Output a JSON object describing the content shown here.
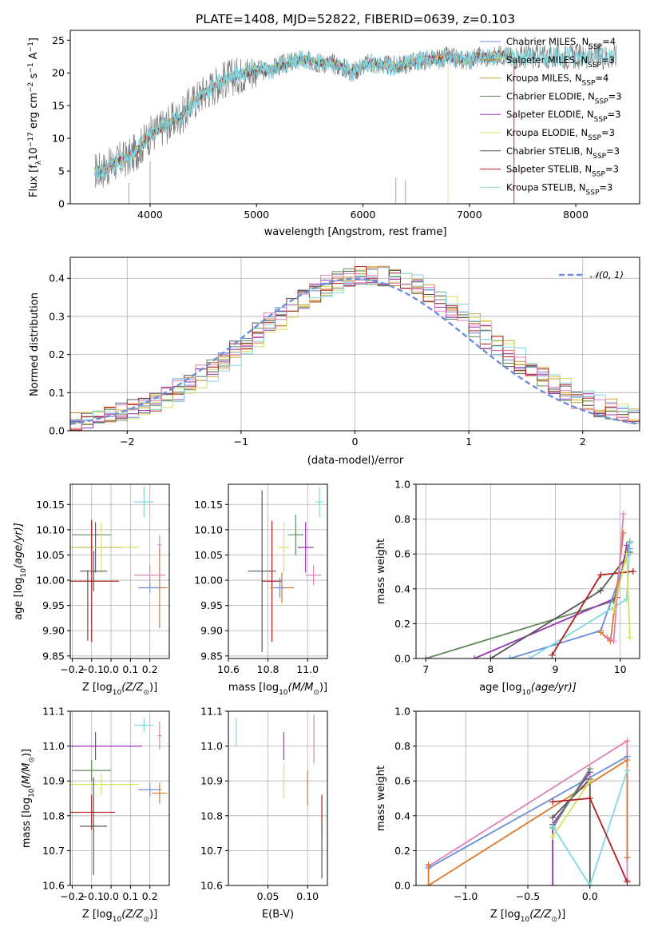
{
  "colors": {
    "c1": "#6a8fd8",
    "c2": "#dd7a2a",
    "c3": "#c9a23a",
    "c4": "#5e8a5e",
    "c5": "#9a33b8",
    "c6": "#d8e060",
    "c7": "#555555",
    "c8": "#b02020",
    "c9": "#80d8e0",
    "pink": "#e080b8",
    "grid": "#b0b0b0",
    "gray": "#7a7a7a"
  },
  "chart_data": [
    {
      "id": "spectrum",
      "type": "line",
      "title": "PLATE=1408, MJD=52822, FIBERID=0639, z=0.103",
      "xlabel": "wavelength [Angstrom, rest frame]",
      "ylabel": "Flux [f",
      "ylabel_sub": "λ",
      "ylabel_rest": "10",
      "ylabel_sup": "−17",
      "ylabel_units": " erg cm",
      "ylabel_sup2": "−2",
      "ylabel_s": " s",
      "ylabel_sup3": "−1",
      "ylabel_a": " A",
      "ylabel_sup4": "−1",
      "ylabel_end": "]",
      "xlim": [
        3250,
        8600
      ],
      "ylim": [
        0,
        26.5
      ],
      "xticks": [
        4000,
        5000,
        6000,
        7000,
        8000
      ],
      "yticks": [
        0,
        5,
        10,
        15,
        20,
        25
      ],
      "x": [
        3480,
        3600,
        3700,
        3800,
        3900,
        4000,
        4100,
        4200,
        4300,
        4400,
        4500,
        4600,
        4700,
        4800,
        4900,
        5000,
        5100,
        5200,
        5300,
        5400,
        5500,
        5600,
        5700,
        5800,
        5900,
        6000,
        6100,
        6200,
        6300,
        6400,
        6500,
        6600,
        6700,
        6800,
        6900,
        7000,
        7100,
        7200,
        7300,
        7400
      ],
      "model": [
        5.0,
        5.5,
        6.5,
        7.0,
        8.5,
        10.5,
        11.5,
        12.5,
        13.5,
        15.5,
        17.0,
        18.0,
        19.0,
        19.5,
        20.0,
        20.5,
        20.3,
        21.0,
        21.5,
        22.0,
        21.8,
        21.5,
        21.5,
        21.0,
        20.0,
        21.2,
        21.5,
        21.2,
        21.0,
        21.3,
        21.8,
        22.0,
        22.0,
        22.5,
        22.0,
        22.0,
        22.5,
        22.3,
        22.8,
        22.5
      ],
      "series_legend": [
        {
          "label": "Chabrier MILES, N",
          "sub": "SSP",
          "end": "=4",
          "color": "#6a8fd8"
        },
        {
          "label": "Salpeter MILES, N",
          "sub": "SSP",
          "end": "=3",
          "color": "#dd7a2a"
        },
        {
          "label": "Kroupa MILES, N",
          "sub": "SSP",
          "end": "=4",
          "color": "#c9a23a"
        },
        {
          "label": "Chabrier ELODIE, N",
          "sub": "SSP",
          "end": "=3",
          "color": "#5e8a5e"
        },
        {
          "label": "Salpeter ELODIE, N",
          "sub": "SSP",
          "end": "=3",
          "color": "#9a33b8"
        },
        {
          "label": "Kroupa ELODIE, N",
          "sub": "SSP",
          "end": "=3",
          "color": "#d8e060"
        },
        {
          "label": "Chabrier STELIB, N",
          "sub": "SSP",
          "end": "=3",
          "color": "#555555"
        },
        {
          "label": "Salpeter STELIB, N",
          "sub": "SSP",
          "end": "=3",
          "color": "#b02020"
        },
        {
          "label": "Kroupa STELIB, N",
          "sub": "SSP",
          "end": "=3",
          "color": "#80d8e0"
        }
      ]
    },
    {
      "id": "residuals",
      "type": "line",
      "xlabel": "(data-model)/error",
      "ylabel": "Normed distribution",
      "xlim": [
        -2.5,
        2.5
      ],
      "ylim": [
        0,
        0.455
      ],
      "xticks": [
        -2,
        -1,
        0,
        1,
        2
      ],
      "yticks": [
        0.0,
        0.1,
        0.2,
        0.3,
        0.4
      ],
      "legend": "𝒩(0, 1)",
      "gaussian_sigma": 1
    },
    {
      "id": "age-vs-Z",
      "type": "scatter",
      "xlabel": "Z [log",
      "xlabel_sub": "10",
      "xlabel_mid": "(Z/Z",
      "xlabel_sub2": "⊙",
      "xlabel_end": ")]",
      "ylabel": "age  [log",
      "ylabel_sub": "10",
      "ylabel_end": "(age/yr)]",
      "xlim": [
        -0.21,
        0.3
      ],
      "ylim": [
        9.845,
        10.19
      ],
      "xticks": [
        -0.2,
        -0.1,
        0.0,
        0.1,
        0.2
      ],
      "yticks": [
        9.85,
        9.9,
        9.95,
        10.0,
        10.05,
        10.1,
        10.15
      ],
      "points": [
        {
          "x": 0.17,
          "y": 10.155,
          "xerr": 0.05,
          "yerr": 0.03,
          "c": "#80d8e0"
        },
        {
          "x": -0.1,
          "y": 10.09,
          "xerr": 0.1,
          "yerr": 0.03,
          "c": "#5e8a5e"
        },
        {
          "x": -0.08,
          "y": 10.065,
          "xerr": 0.13,
          "yerr": 0.05,
          "c": "#9a33b8"
        },
        {
          "x": -0.05,
          "y": 10.065,
          "xerr": 0.19,
          "yerr": 0.05,
          "c": "#d8e060"
        },
        {
          "x": 0.25,
          "y": 10.07,
          "xerr": 0.01,
          "yerr": 0.02,
          "c": "#e080b8"
        },
        {
          "x": -0.09,
          "y": 10.018,
          "xerr": 0.07,
          "yerr": 0.04,
          "c": "#555555"
        },
        {
          "x": 0.2,
          "y": 10.01,
          "xerr": 0.08,
          "yerr": 0.02,
          "c": "#e080b8"
        },
        {
          "x": -0.1,
          "y": 9.998,
          "xerr": 0.14,
          "yerr": 0.12,
          "c": "#b02020"
        },
        {
          "x": 0.25,
          "y": 9.985,
          "xerr": 0.04,
          "yerr": 0.08,
          "c": "#dd7a2a"
        },
        {
          "x": 0.2,
          "y": 9.985,
          "xerr": 0.06,
          "yerr": 0.01,
          "c": "#6a8fd8"
        },
        {
          "x": -0.12,
          "y": 9.95,
          "xerr": 0.0,
          "yerr": 0.07,
          "c": "#555555"
        }
      ]
    },
    {
      "id": "age-vs-mass",
      "type": "scatter",
      "xlabel": "mass [log",
      "xlabel_sub": "10",
      "xlabel_mid": "(M/M",
      "xlabel_sub2": "⊙",
      "xlabel_end": ")]",
      "xlim": [
        10.6,
        11.1
      ],
      "ylim": [
        9.845,
        10.19
      ],
      "xticks": [
        10.6,
        10.8,
        11.0
      ],
      "yticks": [
        9.85,
        9.9,
        9.95,
        10.0,
        10.05,
        10.1,
        10.15
      ],
      "points": [
        {
          "x": 11.06,
          "y": 10.155,
          "xerr": 0.02,
          "yerr": 0.03,
          "c": "#80d8e0"
        },
        {
          "x": 10.94,
          "y": 10.09,
          "xerr": 0.04,
          "yerr": 0.04,
          "c": "#5e8a5e"
        },
        {
          "x": 10.99,
          "y": 10.065,
          "xerr": 0.04,
          "yerr": 0.05,
          "c": "#9a33b8"
        },
        {
          "x": 10.88,
          "y": 10.065,
          "xerr": 0.03,
          "yerr": 0.05,
          "c": "#d8e060"
        },
        {
          "x": 10.77,
          "y": 10.018,
          "xerr": 0.07,
          "yerr": 0.16,
          "c": "#555555"
        },
        {
          "x": 11.03,
          "y": 10.01,
          "xerr": 0.04,
          "yerr": 0.02,
          "c": "#e080b8"
        },
        {
          "x": 10.82,
          "y": 9.998,
          "xerr": 0.05,
          "yerr": 0.12,
          "c": "#b02020"
        },
        {
          "x": 10.87,
          "y": 9.985,
          "xerr": 0.06,
          "yerr": 0.03,
          "c": "#dd7a2a"
        },
        {
          "x": 10.86,
          "y": 9.985,
          "xerr": 0.03,
          "yerr": 0.02,
          "c": "#6a8fd8"
        }
      ]
    },
    {
      "id": "massweight-vs-age",
      "type": "line",
      "xlabel": "age  [log",
      "xlabel_sub": "10",
      "xlabel_end": "(age/yr)]",
      "ylabel": "mass weight",
      "xlim": [
        6.85,
        10.3
      ],
      "ylim": [
        0,
        1.0
      ],
      "xticks": [
        7,
        8,
        9,
        10
      ],
      "yticks": [
        0.0,
        0.2,
        0.4,
        0.6,
        0.8,
        1.0
      ],
      "series": [
        {
          "c": "#5e8a5e",
          "x": [
            7.0,
            9.9,
            10.15
          ],
          "y": [
            0.0,
            0.33,
            0.67
          ]
        },
        {
          "c": "#9a33b8",
          "x": [
            7.75,
            9.95,
            10.1
          ],
          "y": [
            0.0,
            0.35,
            0.65
          ]
        },
        {
          "c": "#555555",
          "x": [
            8.0,
            9.7,
            10.15
          ],
          "y": [
            0.0,
            0.39,
            0.61
          ]
        },
        {
          "c": "#6a8fd8",
          "x": [
            8.3,
            9.7,
            10.15
          ],
          "y": [
            0.0,
            0.16,
            0.63
          ]
        },
        {
          "c": "#80d8e0",
          "x": [
            8.6,
            10.1,
            10.15
          ],
          "y": [
            0.0,
            0.34,
            0.66
          ]
        },
        {
          "c": "#b02020",
          "x": [
            8.95,
            9.7,
            10.2
          ],
          "y": [
            0.02,
            0.48,
            0.5
          ]
        },
        {
          "c": "#dd7a2a",
          "x": [
            9.7,
            9.85,
            10.05
          ],
          "y": [
            0.15,
            0.1,
            0.72
          ]
        },
        {
          "c": "#e080b8",
          "x": [
            9.8,
            9.9,
            10.05
          ],
          "y": [
            0.12,
            0.1,
            0.83
          ]
        },
        {
          "c": "#d8e060",
          "x": [
            9.9,
            10.1,
            10.15
          ],
          "y": [
            0.28,
            0.6,
            0.12
          ]
        }
      ]
    },
    {
      "id": "mass-vs-Z",
      "type": "scatter",
      "xlabel": "Z [log",
      "xlabel_sub": "10",
      "xlabel_mid": "(Z/Z",
      "xlabel_sub2": "⊙",
      "xlabel_end": ")]",
      "ylabel": "mass [log",
      "ylabel_sub": "10",
      "ylabel_mid": "(M/M",
      "ylabel_sub2": "⊙",
      "ylabel_end": ")]",
      "xlim": [
        -0.21,
        0.3
      ],
      "ylim": [
        10.6,
        11.1
      ],
      "xticks": [
        -0.2,
        -0.1,
        0.0,
        0.1,
        0.2
      ],
      "yticks": [
        10.6,
        10.7,
        10.8,
        10.9,
        11.0,
        11.1
      ],
      "points": [
        {
          "x": 0.17,
          "y": 11.06,
          "xerr": 0.05,
          "yerr": 0.02,
          "c": "#80d8e0"
        },
        {
          "x": 0.25,
          "y": 11.03,
          "xerr": 0.01,
          "yerr": 0.04,
          "c": "#e080b8"
        },
        {
          "x": -0.08,
          "y": 11.0,
          "xerr": 0.24,
          "yerr": 0.04,
          "c": "#9a33b8"
        },
        {
          "x": -0.1,
          "y": 10.93,
          "xerr": 0.1,
          "yerr": 0.03,
          "c": "#5e8a5e"
        },
        {
          "x": -0.05,
          "y": 10.89,
          "xerr": 0.19,
          "yerr": 0.03,
          "c": "#d8e060"
        },
        {
          "x": 0.2,
          "y": 10.875,
          "xerr": 0.06,
          "yerr": 0.02,
          "c": "#6a8fd8"
        },
        {
          "x": 0.25,
          "y": 10.865,
          "xerr": 0.04,
          "yerr": 0.03,
          "c": "#dd7a2a"
        },
        {
          "x": -0.1,
          "y": 10.81,
          "xerr": 0.12,
          "yerr": 0.05,
          "c": "#b02020"
        },
        {
          "x": -0.09,
          "y": 10.77,
          "xerr": 0.07,
          "yerr": 0.14,
          "c": "#555555"
        }
      ]
    },
    {
      "id": "mass-vs-EBV",
      "type": "scatter",
      "xlabel": "E(B-V)",
      "xlim": [
        0.0,
        0.125
      ],
      "ylim": [
        10.6,
        11.1
      ],
      "xticks": [
        0.05,
        0.1
      ],
      "yticks": [
        10.6,
        10.7,
        10.8,
        10.9,
        11.0,
        11.1
      ],
      "points": [
        {
          "x": 0.01,
          "y": 11.04,
          "xerr": 0.0,
          "yerr": 0.04,
          "c": "#80d8e0"
        },
        {
          "x": 0.07,
          "y": 11.0,
          "xerr": 0.0,
          "yerr": 0.04,
          "c": "#9a33b8"
        },
        {
          "x": 0.07,
          "y": 10.9,
          "xerr": 0.0,
          "yerr": 0.05,
          "c": "#d8e060"
        },
        {
          "x": 0.1,
          "y": 10.88,
          "xerr": 0.0,
          "yerr": 0.05,
          "c": "#dd7a2a"
        },
        {
          "x": 0.108,
          "y": 11.02,
          "xerr": 0.0,
          "yerr": 0.07,
          "c": "#e080b8"
        },
        {
          "x": 0.118,
          "y": 10.8,
          "xerr": 0.0,
          "yerr": 0.06,
          "c": "#b02020"
        },
        {
          "x": 0.118,
          "y": 10.7,
          "xerr": 0.0,
          "yerr": 0.08,
          "c": "#555555"
        }
      ]
    },
    {
      "id": "massweight-vs-Z",
      "type": "line",
      "xlabel": "Z [log",
      "xlabel_sub": "10",
      "xlabel_mid": "(Z/Z",
      "xlabel_sub2": "⊙",
      "xlabel_end": ")]",
      "ylabel": "mass weight",
      "xlim": [
        -1.4,
        0.4
      ],
      "ylim": [
        0,
        1.0
      ],
      "xticks": [
        -1.0,
        -0.5,
        0.0
      ],
      "yticks": [
        0.0,
        0.2,
        0.4,
        0.6,
        0.8,
        1.0
      ],
      "series": [
        {
          "c": "#e080b8",
          "x": [
            -1.3,
            0.3,
            0.3
          ],
          "y": [
            0.11,
            0.83,
            0.03
          ]
        },
        {
          "c": "#6a8fd8",
          "x": [
            -1.3,
            0.3,
            0.3
          ],
          "y": [
            0.1,
            0.74,
            0.16
          ]
        },
        {
          "c": "#dd7a2a",
          "x": [
            -1.3,
            -1.3,
            0.3,
            0.3
          ],
          "y": [
            0.12,
            0.0,
            0.72,
            0.16
          ]
        },
        {
          "c": "#9a33b8",
          "x": [
            -0.3,
            -0.3,
            0.0
          ],
          "y": [
            0.0,
            0.35,
            0.65
          ]
        },
        {
          "c": "#555555",
          "x": [
            -0.3,
            0.0,
            0.0
          ],
          "y": [
            0.39,
            0.61,
            0.0
          ]
        },
        {
          "c": "#5e8a5e",
          "x": [
            -0.3,
            0.0
          ],
          "y": [
            0.33,
            0.67
          ]
        },
        {
          "c": "#d8e060",
          "x": [
            -0.3,
            0.0
          ],
          "y": [
            0.28,
            0.6
          ]
        },
        {
          "c": "#80d8e0",
          "x": [
            -0.3,
            0.0,
            0.3
          ],
          "y": [
            0.34,
            0.0,
            0.66
          ]
        },
        {
          "c": "#b02020",
          "x": [
            -0.3,
            0.0,
            0.3
          ],
          "y": [
            0.48,
            0.5,
            0.02
          ]
        }
      ]
    }
  ]
}
